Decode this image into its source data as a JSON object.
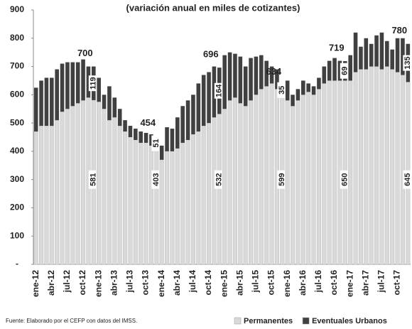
{
  "chart_data": {
    "type": "stacked_bar",
    "title": "(variación anual en miles de cotizantes)",
    "categories": [
      "ene-12",
      null,
      null,
      "abr-12",
      null,
      null,
      "jul-12",
      null,
      null,
      "oct-12",
      null,
      null,
      "ene-13",
      null,
      null,
      "abr-13",
      null,
      null,
      "jul-13",
      null,
      null,
      "oct-13",
      null,
      null,
      "ene-14",
      null,
      null,
      "abr-14",
      null,
      null,
      "jul-14",
      null,
      null,
      "oct-14",
      null,
      null,
      "ene-15",
      null,
      null,
      "abr-15",
      null,
      null,
      "jul-15",
      null,
      null,
      "oct-15",
      null,
      null,
      "ene-16",
      null,
      null,
      "abr-16",
      null,
      null,
      "jul-16",
      null,
      null,
      "oct-16",
      null,
      null,
      "ene-17",
      null,
      null,
      "abr-17",
      null,
      null,
      "jul-17",
      null,
      null,
      "oct-17",
      null,
      null
    ],
    "series": [
      {
        "name": "Permanentes",
        "color": "#d9d9d9",
        "values": [
          470,
          490,
          490,
          490,
          510,
          540,
          550,
          560,
          570,
          580,
          590,
          581,
          575,
          550,
          510,
          520,
          490,
          470,
          450,
          440,
          430,
          430,
          420,
          403,
          370,
          400,
          400,
          410,
          430,
          440,
          460,
          470,
          490,
          500,
          520,
          532,
          550,
          580,
          590,
          570,
          560,
          580,
          600,
          620,
          630,
          640,
          620,
          599,
          580,
          560,
          580,
          600,
          610,
          600,
          620,
          640,
          650,
          650,
          650,
          650,
          650,
          680,
          690,
          690,
          700,
          700,
          690,
          700,
          690,
          680,
          670,
          645
        ],
        "value_labels": [
          null,
          null,
          null,
          null,
          null,
          null,
          null,
          null,
          null,
          null,
          null,
          "581",
          null,
          null,
          null,
          null,
          null,
          null,
          null,
          null,
          null,
          null,
          null,
          "403",
          null,
          null,
          null,
          null,
          null,
          null,
          null,
          null,
          null,
          null,
          null,
          "532",
          null,
          null,
          null,
          null,
          null,
          null,
          null,
          null,
          null,
          null,
          null,
          "599",
          null,
          null,
          null,
          null,
          null,
          null,
          null,
          null,
          null,
          null,
          null,
          "650",
          null,
          null,
          null,
          null,
          null,
          null,
          null,
          null,
          null,
          null,
          null,
          "645"
        ]
      },
      {
        "name": "Eventuales Urbanos",
        "color": "#404040",
        "values": [
          155,
          160,
          170,
          170,
          180,
          170,
          165,
          155,
          145,
          145,
          110,
          119,
          85,
          50,
          120,
          70,
          60,
          40,
          40,
          40,
          40,
          35,
          40,
          51,
          50,
          85,
          80,
          110,
          130,
          140,
          140,
          170,
          180,
          180,
          180,
          164,
          190,
          170,
          155,
          165,
          140,
          150,
          135,
          120,
          90,
          60,
          70,
          35,
          70,
          40,
          40,
          50,
          30,
          30,
          40,
          60,
          70,
          80,
          70,
          69,
          90,
          140,
          80,
          110,
          80,
          110,
          130,
          90,
          70,
          120,
          130,
          135
        ],
        "value_labels": [
          null,
          null,
          null,
          null,
          null,
          null,
          null,
          null,
          null,
          null,
          null,
          "119",
          null,
          null,
          null,
          null,
          null,
          null,
          null,
          null,
          null,
          null,
          null,
          "51",
          null,
          null,
          null,
          null,
          null,
          null,
          null,
          null,
          null,
          null,
          null,
          "164",
          null,
          null,
          null,
          null,
          null,
          null,
          null,
          null,
          null,
          null,
          null,
          "35",
          null,
          null,
          null,
          null,
          null,
          null,
          null,
          null,
          null,
          null,
          null,
          "69",
          null,
          null,
          null,
          null,
          null,
          null,
          null,
          null,
          null,
          null,
          null,
          "135"
        ]
      }
    ],
    "total_labels": [
      null,
      null,
      null,
      null,
      null,
      null,
      null,
      null,
      null,
      null,
      null,
      "700",
      null,
      null,
      null,
      null,
      null,
      null,
      null,
      null,
      null,
      null,
      null,
      "454",
      null,
      null,
      null,
      null,
      null,
      null,
      null,
      null,
      null,
      null,
      null,
      "696",
      null,
      null,
      null,
      null,
      null,
      null,
      null,
      null,
      null,
      null,
      null,
      "634",
      null,
      null,
      null,
      null,
      null,
      null,
      null,
      null,
      null,
      null,
      null,
      "719",
      null,
      null,
      null,
      null,
      null,
      null,
      null,
      null,
      null,
      null,
      null,
      "780"
    ],
    "ylim": [
      0,
      900
    ],
    "yticks": [
      {
        "value": 0,
        "label": "-"
      },
      100,
      200,
      300,
      400,
      500,
      600,
      700,
      800,
      900
    ],
    "source": "Fuente: Elaborado por el CEFP con datos del IMSS.",
    "legend": "bottom-right"
  }
}
